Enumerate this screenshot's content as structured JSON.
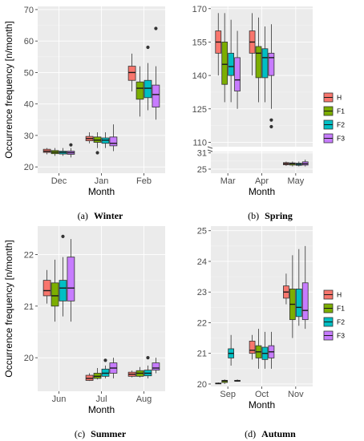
{
  "colors": {
    "H": "#f8766d",
    "F1": "#7cae00",
    "F2": "#00bfc4",
    "F3": "#c77cff"
  },
  "chart_data": [
    {
      "type": "box",
      "caption_label": "(a)",
      "caption_title": "Winter",
      "xlabel": "Month",
      "ylabel": "Occurrence frequency [n/month]",
      "categories": [
        "Dec",
        "Jan",
        "Feb"
      ],
      "ylim": [
        18,
        71
      ],
      "yticks": [
        20,
        30,
        40,
        50,
        60,
        70
      ],
      "legend": null,
      "series": [
        {
          "name": "H",
          "boxes": [
            {
              "low": 24,
              "q1": 24.6,
              "med": 25,
              "q3": 25.6,
              "high": 26,
              "outliers": []
            },
            {
              "low": 27.5,
              "q1": 28.3,
              "med": 29,
              "q3": 29.7,
              "high": 31,
              "outliers": []
            },
            {
              "low": 44,
              "q1": 47.5,
              "med": 50,
              "q3": 52,
              "high": 56,
              "outliers": []
            }
          ]
        },
        {
          "name": "F1",
          "boxes": [
            {
              "low": 23.5,
              "q1": 24.2,
              "med": 24.7,
              "q3": 25.2,
              "high": 26,
              "outliers": []
            },
            {
              "low": 26,
              "q1": 27.8,
              "med": 28.5,
              "q3": 29.5,
              "high": 31,
              "outliers": [
                24.5
              ]
            },
            {
              "low": 36,
              "q1": 41.5,
              "med": 45,
              "q3": 47,
              "high": 52,
              "outliers": []
            }
          ]
        },
        {
          "name": "F2",
          "boxes": [
            {
              "low": 23.5,
              "q1": 24.1,
              "med": 24.6,
              "q3": 25,
              "high": 26,
              "outliers": []
            },
            {
              "low": 26,
              "q1": 27.5,
              "med": 28.5,
              "q3": 29.2,
              "high": 31,
              "outliers": []
            },
            {
              "low": 38,
              "q1": 42,
              "med": 45,
              "q3": 47.5,
              "high": 53,
              "outliers": [
                58
              ]
            }
          ]
        },
        {
          "name": "F3",
          "boxes": [
            {
              "low": 23,
              "q1": 24,
              "med": 24.5,
              "q3": 25,
              "high": 26,
              "outliers": [
                27
              ]
            },
            {
              "low": 25,
              "q1": 26.7,
              "med": 27.5,
              "q3": 29.5,
              "high": 33.5,
              "outliers": []
            },
            {
              "low": 35,
              "q1": 39,
              "med": 43,
              "q3": 46,
              "high": 52,
              "outliers": [
                64
              ]
            }
          ]
        }
      ]
    },
    {
      "type": "box",
      "caption_label": "(b)",
      "caption_title": "Spring",
      "xlabel": "Month",
      "ylabel": "",
      "categories": [
        "Mar",
        "Apr",
        "May"
      ],
      "broken_axis": true,
      "upper_ylim": [
        108,
        171
      ],
      "upper_yticks": [
        110,
        125,
        140,
        155,
        170
      ],
      "lower_ylim": [
        23.5,
        31.5
      ],
      "lower_yticks": [
        25,
        31
      ],
      "legend": {
        "position": "right",
        "entries": [
          "H",
          "F1",
          "F2",
          "F3"
        ]
      },
      "series": [
        {
          "name": "H",
          "boxes": [
            {
              "low": 140,
              "q1": 150,
              "med": 155,
              "q3": 160,
              "high": 168,
              "outliers": []
            },
            {
              "low": 140,
              "q1": 150,
              "med": 155,
              "q3": 160,
              "high": 168,
              "outliers": []
            },
            {
              "low": 26.2,
              "q1": 26.6,
              "med": 27,
              "q3": 27.4,
              "high": 27.8,
              "outliers": []
            }
          ]
        },
        {
          "name": "F1",
          "boxes": [
            {
              "low": 128,
              "q1": 136,
              "med": 145,
              "q3": 155,
              "high": 168,
              "outliers": []
            },
            {
              "low": 128,
              "q1": 139,
              "med": 150,
              "q3": 153,
              "high": 166,
              "outliers": []
            },
            {
              "low": 26,
              "q1": 26.5,
              "med": 27,
              "q3": 27.3,
              "high": 27.8,
              "outliers": []
            }
          ]
        },
        {
          "name": "F2",
          "boxes": [
            {
              "low": 128,
              "q1": 140,
              "med": 144,
              "q3": 150,
              "high": 165,
              "outliers": []
            },
            {
              "low": 128,
              "q1": 139,
              "med": 148,
              "q3": 152,
              "high": 162,
              "outliers": []
            },
            {
              "low": 26,
              "q1": 26.4,
              "med": 26.8,
              "q3": 27.2,
              "high": 27.8,
              "outliers": []
            }
          ]
        },
        {
          "name": "F3",
          "boxes": [
            {
              "low": 125,
              "q1": 133,
              "med": 138,
              "q3": 148,
              "high": 160,
              "outliers": []
            },
            {
              "low": 125,
              "q1": 140,
              "med": 148,
              "q3": 150,
              "high": 163,
              "outliers": [
                120,
                117
              ]
            },
            {
              "low": 26,
              "q1": 26.5,
              "med": 27,
              "q3": 27.7,
              "high": 28.5,
              "outliers": []
            }
          ]
        }
      ]
    },
    {
      "type": "box",
      "caption_label": "(c)",
      "caption_title": "Summer",
      "xlabel": "Month",
      "ylabel": "Occurrence frequency [n/month]",
      "categories": [
        "Jun",
        "Jul",
        "Aug"
      ],
      "ylim": [
        19.35,
        22.55
      ],
      "yticks": [
        20,
        21,
        22
      ],
      "legend": null,
      "series": [
        {
          "name": "H",
          "boxes": [
            {
              "low": 21.05,
              "q1": 21.2,
              "med": 21.3,
              "q3": 21.5,
              "high": 21.7,
              "outliers": []
            },
            {
              "low": 19.55,
              "q1": 19.56,
              "med": 19.6,
              "q3": 19.66,
              "high": 19.7,
              "outliers": []
            },
            {
              "low": 19.62,
              "q1": 19.64,
              "med": 19.68,
              "q3": 19.72,
              "high": 19.75,
              "outliers": []
            }
          ]
        },
        {
          "name": "F1",
          "boxes": [
            {
              "low": 20.7,
              "q1": 21.0,
              "med": 21.2,
              "q3": 21.45,
              "high": 21.9,
              "outliers": []
            },
            {
              "low": 19.58,
              "q1": 19.6,
              "med": 19.64,
              "q3": 19.7,
              "high": 19.8,
              "outliers": []
            },
            {
              "low": 19.62,
              "q1": 19.64,
              "med": 19.7,
              "q3": 19.75,
              "high": 19.82,
              "outliers": []
            }
          ]
        },
        {
          "name": "F2",
          "boxes": [
            {
              "low": 20.8,
              "q1": 21.1,
              "med": 21.35,
              "q3": 21.5,
              "high": 21.95,
              "outliers": [
                22.35
              ]
            },
            {
              "low": 19.6,
              "q1": 19.64,
              "med": 19.7,
              "q3": 19.78,
              "high": 19.85,
              "outliers": [
                19.95
              ]
            },
            {
              "low": 19.6,
              "q1": 19.65,
              "med": 19.7,
              "q3": 19.76,
              "high": 19.85,
              "outliers": [
                20.0
              ]
            }
          ]
        },
        {
          "name": "F3",
          "boxes": [
            {
              "low": 20.7,
              "q1": 21.1,
              "med": 21.35,
              "q3": 21.95,
              "high": 22.3,
              "outliers": []
            },
            {
              "low": 19.6,
              "q1": 19.7,
              "med": 19.8,
              "q3": 19.9,
              "high": 20.0,
              "outliers": []
            },
            {
              "low": 19.7,
              "q1": 19.76,
              "med": 19.8,
              "q3": 19.9,
              "high": 20.0,
              "outliers": []
            }
          ]
        }
      ]
    },
    {
      "type": "box",
      "caption_label": "(d)",
      "caption_title": "Autumn",
      "xlabel": "Month",
      "ylabel": "",
      "categories": [
        "Sep",
        "Oct",
        "Nov"
      ],
      "ylim": [
        19.92,
        25.15
      ],
      "yticks": [
        20,
        21,
        22,
        23,
        24,
        25
      ],
      "legend": {
        "position": "right",
        "entries": [
          "H",
          "F1",
          "F2",
          "F3"
        ]
      },
      "series": [
        {
          "name": "H",
          "boxes": [
            {
              "low": 20.0,
              "q1": 20.01,
              "med": 20.02,
              "q3": 20.03,
              "high": 20.05,
              "outliers": []
            },
            {
              "low": 20.8,
              "q1": 21.0,
              "med": 21.1,
              "q3": 21.4,
              "high": 21.6,
              "outliers": []
            },
            {
              "low": 22.6,
              "q1": 22.8,
              "med": 23.0,
              "q3": 23.2,
              "high": 23.6,
              "outliers": []
            }
          ]
        },
        {
          "name": "F1",
          "boxes": [
            {
              "low": 20.0,
              "q1": 20.05,
              "med": 20.1,
              "q3": 20.12,
              "high": 20.15,
              "outliers": []
            },
            {
              "low": 20.5,
              "q1": 20.85,
              "med": 21.05,
              "q3": 21.25,
              "high": 21.8,
              "outliers": []
            },
            {
              "low": 21.5,
              "q1": 22.1,
              "med": 22.6,
              "q3": 23.1,
              "high": 24.2,
              "outliers": []
            }
          ]
        },
        {
          "name": "F2",
          "boxes": [
            {
              "low": 20.6,
              "q1": 20.85,
              "med": 21.0,
              "q3": 21.15,
              "high": 21.6,
              "outliers": []
            },
            {
              "low": 20.5,
              "q1": 20.8,
              "med": 21.0,
              "q3": 21.2,
              "high": 21.7,
              "outliers": []
            },
            {
              "low": 21.9,
              "q1": 22.2,
              "med": 22.5,
              "q3": 23.1,
              "high": 24.4,
              "outliers": []
            }
          ]
        },
        {
          "name": "F3",
          "boxes": [
            {
              "low": 20.08,
              "q1": 20.1,
              "med": 20.1,
              "q3": 20.12,
              "high": 20.15,
              "outliers": []
            },
            {
              "low": 20.5,
              "q1": 20.85,
              "med": 21.05,
              "q3": 21.25,
              "high": 21.7,
              "outliers": []
            },
            {
              "low": 21.8,
              "q1": 22.1,
              "med": 22.4,
              "q3": 23.3,
              "high": 24.5,
              "outliers": []
            }
          ]
        }
      ]
    }
  ]
}
